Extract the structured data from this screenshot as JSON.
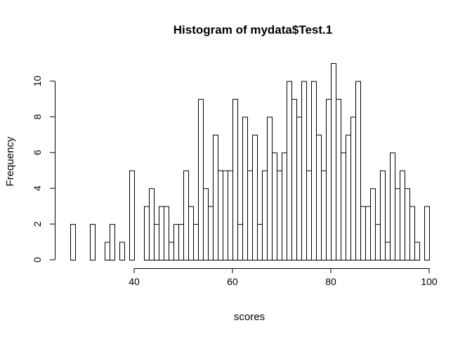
{
  "chart_data": {
    "type": "bar",
    "title": "Histogram of mydata$Test.1",
    "xlabel": "scores",
    "ylabel": "Frequency",
    "bin_width": 1,
    "bin_start": 27,
    "xlim": [
      27,
      100
    ],
    "ylim": [
      0,
      11
    ],
    "x_ticks": [
      40,
      60,
      80,
      100
    ],
    "y_ticks": [
      0,
      2,
      4,
      6,
      8,
      10
    ],
    "grid": false,
    "legend": "none",
    "bar_fill": "#ffffff",
    "bar_stroke": "#000000",
    "values": [
      2,
      0,
      0,
      0,
      2,
      0,
      0,
      1,
      2,
      0,
      1,
      0,
      5,
      0,
      0,
      3,
      4,
      2,
      3,
      3,
      1,
      2,
      2,
      5,
      3,
      2,
      9,
      4,
      3,
      7,
      5,
      5,
      5,
      9,
      2,
      8,
      5,
      7,
      2,
      5,
      8,
      6,
      5,
      6,
      10,
      9,
      8,
      10,
      5,
      10,
      7,
      5,
      9,
      11,
      9,
      6,
      7,
      8,
      10,
      3,
      3,
      4,
      2,
      5,
      1,
      6,
      4,
      5,
      4,
      3,
      1,
      0,
      3
    ]
  }
}
